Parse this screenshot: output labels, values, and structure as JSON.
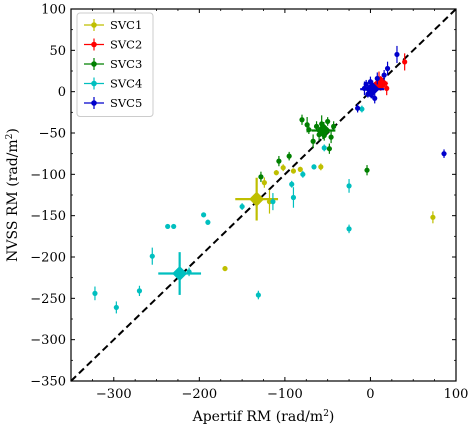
{
  "chart_data": {
    "type": "scatter",
    "xlabel": "Apertif RM (rad/m",
    "ylabel": "NVSS RM (rad/m",
    "label_exponent": "2",
    "label_close": ")",
    "xlim": [
      -350,
      100
    ],
    "ylim": [
      -350,
      100
    ],
    "xticks": [
      -300,
      -200,
      -100,
      0,
      100
    ],
    "yticks": [
      -350,
      -300,
      -250,
      -200,
      -150,
      -100,
      -50,
      0,
      50,
      100
    ],
    "x_tick_labels": [
      "−300",
      "−200",
      "−100",
      "0",
      "100"
    ],
    "y_tick_labels": [
      "−350",
      "−300",
      "−250",
      "−200",
      "−150",
      "−100",
      "−50",
      "0",
      "50",
      "100"
    ],
    "grid": false,
    "legend_position": "top-left",
    "reference_line": "y = x (dashed)",
    "series": [
      {
        "name": "SVC1",
        "color": "#bfbf00",
        "points": [
          {
            "x": -170,
            "y": -214,
            "ex": 2,
            "ey": 3
          },
          {
            "x": -124,
            "y": -110,
            "ex": 2,
            "ey": 6
          },
          {
            "x": -118,
            "y": -133,
            "ex": 2,
            "ey": 14
          },
          {
            "x": -110,
            "y": -98,
            "ex": 2,
            "ey": 3
          },
          {
            "x": -102,
            "y": -92,
            "ex": 2,
            "ey": 4
          },
          {
            "x": -90,
            "y": -96,
            "ex": 2,
            "ey": 3
          },
          {
            "x": -82,
            "y": -94,
            "ex": 2,
            "ey": 3
          },
          {
            "x": -58,
            "y": -91,
            "ex": 2,
            "ey": 4
          },
          {
            "x": 73,
            "y": -152,
            "ex": 2,
            "ey": 7
          }
        ],
        "mean": {
          "x": -133,
          "y": -130,
          "ex": 25,
          "ey": 25
        }
      },
      {
        "name": "SVC2",
        "color": "#ff0000",
        "points": [
          {
            "x": 6,
            "y": 5,
            "ex": 2,
            "ey": 4
          },
          {
            "x": 10,
            "y": 14,
            "ex": 2,
            "ey": 10
          },
          {
            "x": 14,
            "y": 8,
            "ex": 2,
            "ey": 5
          },
          {
            "x": 19,
            "y": 4,
            "ex": 2,
            "ey": 8
          },
          {
            "x": 40,
            "y": 36,
            "ex": 2,
            "ey": 10
          }
        ],
        "mean": {
          "x": 12,
          "y": 10,
          "ex": 8,
          "ey": 8
        }
      },
      {
        "name": "SVC3",
        "color": "#008000",
        "points": [
          {
            "x": -80,
            "y": -34,
            "ex": 2,
            "ey": 6
          },
          {
            "x": -74,
            "y": -40,
            "ex": 2,
            "ey": 9
          },
          {
            "x": -72,
            "y": -46,
            "ex": 2,
            "ey": 5
          },
          {
            "x": -67,
            "y": -60,
            "ex": 2,
            "ey": 8
          },
          {
            "x": -63,
            "y": -42,
            "ex": 2,
            "ey": 6
          },
          {
            "x": -60,
            "y": -52,
            "ex": 2,
            "ey": 7
          },
          {
            "x": -57,
            "y": -39,
            "ex": 2,
            "ey": 10
          },
          {
            "x": -54,
            "y": -53,
            "ex": 2,
            "ey": 6
          },
          {
            "x": -50,
            "y": -36,
            "ex": 2,
            "ey": 5
          },
          {
            "x": -46,
            "y": -55,
            "ex": 2,
            "ey": 7
          },
          {
            "x": -43,
            "y": -42,
            "ex": 2,
            "ey": 6
          },
          {
            "x": -48,
            "y": -69,
            "ex": 2,
            "ey": 6
          },
          {
            "x": -95,
            "y": -78,
            "ex": 2,
            "ey": 5
          },
          {
            "x": -107,
            "y": -84,
            "ex": 2,
            "ey": 6
          },
          {
            "x": -128,
            "y": -103,
            "ex": 2,
            "ey": 6
          },
          {
            "x": -4,
            "y": -95,
            "ex": 2,
            "ey": 6
          }
        ],
        "mean": {
          "x": -55,
          "y": -47,
          "ex": 14,
          "ey": 10
        }
      },
      {
        "name": "SVC4",
        "color": "#00bfbf",
        "points": [
          {
            "x": -322,
            "y": -244,
            "ex": 2,
            "ey": 8
          },
          {
            "x": -297,
            "y": -261,
            "ex": 2,
            "ey": 7
          },
          {
            "x": -270,
            "y": -241,
            "ex": 2,
            "ey": 6
          },
          {
            "x": -255,
            "y": -199,
            "ex": 2,
            "ey": 10
          },
          {
            "x": -237,
            "y": -163,
            "ex": 2,
            "ey": 2
          },
          {
            "x": -230,
            "y": -163,
            "ex": 2,
            "ey": 2
          },
          {
            "x": -212,
            "y": -218,
            "ex": 2,
            "ey": 5
          },
          {
            "x": -195,
            "y": -149,
            "ex": 2,
            "ey": 2
          },
          {
            "x": -190,
            "y": -158,
            "ex": 2,
            "ey": 3
          },
          {
            "x": -150,
            "y": -139,
            "ex": 2,
            "ey": 4
          },
          {
            "x": -131,
            "y": -246,
            "ex": 2,
            "ey": 5
          },
          {
            "x": -114,
            "y": -133,
            "ex": 2,
            "ey": 10
          },
          {
            "x": -90,
            "y": -128,
            "ex": 2,
            "ey": 12
          },
          {
            "x": -92,
            "y": -112,
            "ex": 2,
            "ey": 4
          },
          {
            "x": -79,
            "y": -100,
            "ex": 2,
            "ey": 4
          },
          {
            "x": -66,
            "y": -91,
            "ex": 2,
            "ey": 3
          },
          {
            "x": -54,
            "y": -68,
            "ex": 2,
            "ey": 4
          },
          {
            "x": -25,
            "y": -114,
            "ex": 2,
            "ey": 8
          },
          {
            "x": -25,
            "y": -166,
            "ex": 2,
            "ey": 5
          },
          {
            "x": -10,
            "y": -21,
            "ex": 2,
            "ey": 4
          }
        ],
        "mean": {
          "x": -223,
          "y": -220,
          "ex": 25,
          "ey": 25
        }
      },
      {
        "name": "SVC5",
        "color": "#0000cc",
        "points": [
          {
            "x": -15,
            "y": -20,
            "ex": 2,
            "ey": 5
          },
          {
            "x": -7,
            "y": 4,
            "ex": 2,
            "ey": 8
          },
          {
            "x": -5,
            "y": 9,
            "ex": 2,
            "ey": 5
          },
          {
            "x": -3,
            "y": -3,
            "ex": 2,
            "ey": 4
          },
          {
            "x": 0,
            "y": 12,
            "ex": 2,
            "ey": 6
          },
          {
            "x": 1,
            "y": -4,
            "ex": 2,
            "ey": 4
          },
          {
            "x": 3,
            "y": 2,
            "ex": 2,
            "ey": 5
          },
          {
            "x": 5,
            "y": -8,
            "ex": 2,
            "ey": 6
          },
          {
            "x": 8,
            "y": 16,
            "ex": 2,
            "ey": 7
          },
          {
            "x": 16,
            "y": 20,
            "ex": 2,
            "ey": 6
          },
          {
            "x": 20,
            "y": 28,
            "ex": 2,
            "ey": 8
          },
          {
            "x": 31,
            "y": 45,
            "ex": 2,
            "ey": 10
          },
          {
            "x": 86,
            "y": -75,
            "ex": 2,
            "ey": 5
          }
        ],
        "mean": {
          "x": 2,
          "y": 3,
          "ex": 14,
          "ey": 10
        }
      }
    ]
  }
}
